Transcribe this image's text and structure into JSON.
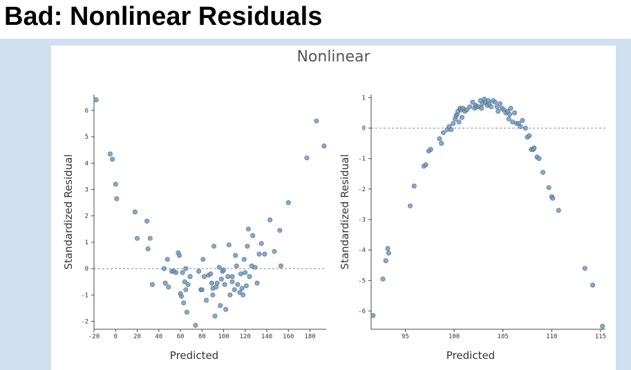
{
  "slide": {
    "title": "Bad: Nonlinear Residuals"
  },
  "colors": {
    "band": "#cfe0f1",
    "point": "#6e93b8",
    "point_stroke": "#46698d",
    "reference_line": "#888888"
  },
  "chart_data": [
    {
      "type": "scatter",
      "title": "Nonlinear",
      "xlabel": "Predicted",
      "ylabel": "Standardized Residual",
      "xlim": [
        -20,
        195
      ],
      "ylim": [
        -2.3,
        6.6
      ],
      "xticks": [
        -20,
        0,
        20,
        40,
        60,
        80,
        100,
        120,
        140,
        160,
        180
      ],
      "yticks": [
        -2,
        -1,
        0,
        1,
        2,
        3,
        4,
        5,
        6
      ],
      "reference_line": 0,
      "grid": false,
      "points": [
        [
          -18,
          6.4
        ],
        [
          -5,
          4.35
        ],
        [
          -3,
          4.15
        ],
        [
          0,
          3.2
        ],
        [
          1,
          2.65
        ],
        [
          18,
          2.15
        ],
        [
          20,
          1.15
        ],
        [
          29,
          1.8
        ],
        [
          30,
          0.75
        ],
        [
          32,
          1.15
        ],
        [
          34,
          -0.6
        ],
        [
          45,
          0.0
        ],
        [
          46,
          -0.55
        ],
        [
          48,
          0.35
        ],
        [
          49,
          -0.7
        ],
        [
          52,
          -0.1
        ],
        [
          54,
          -0.1
        ],
        [
          56,
          -0.15
        ],
        [
          58,
          0.6
        ],
        [
          59,
          0.5
        ],
        [
          60,
          -0.95
        ],
        [
          61,
          -1.05
        ],
        [
          62,
          -0.15
        ],
        [
          63,
          -1.3
        ],
        [
          64,
          -0.5
        ],
        [
          65,
          0.0
        ],
        [
          65,
          -0.8
        ],
        [
          66,
          -1.65
        ],
        [
          67,
          -0.6
        ],
        [
          69,
          -0.3
        ],
        [
          74,
          -2.15
        ],
        [
          77,
          -0.1
        ],
        [
          79,
          -0.8
        ],
        [
          80,
          -0.8
        ],
        [
          81,
          0.35
        ],
        [
          82,
          -0.3
        ],
        [
          84,
          -1.2
        ],
        [
          86,
          -0.25
        ],
        [
          88,
          -0.2
        ],
        [
          89,
          -0.55
        ],
        [
          90,
          -0.75
        ],
        [
          90,
          -1.0
        ],
        [
          91,
          0.85
        ],
        [
          92,
          -1.8
        ],
        [
          93,
          -0.7
        ],
        [
          94,
          -0.55
        ],
        [
          96,
          0.05
        ],
        [
          97,
          -1.4
        ],
        [
          98,
          -0.4
        ],
        [
          99,
          -0.1
        ],
        [
          100,
          -0.05
        ],
        [
          101,
          -0.6
        ],
        [
          102,
          -1.55
        ],
        [
          104,
          -0.3
        ],
        [
          105,
          0.9
        ],
        [
          106,
          -1.0
        ],
        [
          108,
          -0.5
        ],
        [
          108,
          -0.3
        ],
        [
          110,
          -0.8
        ],
        [
          111,
          0.5
        ],
        [
          112,
          0.1
        ],
        [
          113,
          -0.6
        ],
        [
          115,
          -0.9
        ],
        [
          116,
          -0.2
        ],
        [
          117,
          -0.75
        ],
        [
          118,
          -1.0
        ],
        [
          119,
          0.35
        ],
        [
          120,
          -0.15
        ],
        [
          121,
          -0.65
        ],
        [
          122,
          0.85
        ],
        [
          123,
          1.5
        ],
        [
          124,
          -0.3
        ],
        [
          126,
          0.1
        ],
        [
          127,
          1.25
        ],
        [
          129,
          0.05
        ],
        [
          131,
          -0.55
        ],
        [
          133,
          0.55
        ],
        [
          135,
          0.95
        ],
        [
          138,
          0.55
        ],
        [
          143,
          1.85
        ],
        [
          147,
          0.65
        ],
        [
          152,
          1.45
        ],
        [
          153,
          0.1
        ],
        [
          160,
          2.5
        ],
        [
          177,
          4.2
        ],
        [
          186,
          5.6
        ],
        [
          193,
          4.65
        ]
      ]
    },
    {
      "type": "scatter",
      "title": "",
      "xlabel": "Predicted",
      "ylabel": "Standardized Residual",
      "xlim": [
        91.5,
        115.5
      ],
      "ylim": [
        -6.6,
        1.1
      ],
      "xticks": [
        95,
        100,
        105,
        110,
        115
      ],
      "yticks": [
        -6,
        -5,
        -4,
        -3,
        -2,
        -1,
        0,
        1
      ],
      "reference_line": 0,
      "grid": false,
      "points": [
        [
          91.7,
          -6.15
        ],
        [
          92.7,
          -4.95
        ],
        [
          93.0,
          -4.35
        ],
        [
          93.2,
          -3.95
        ],
        [
          93.3,
          -4.1
        ],
        [
          95.5,
          -2.55
        ],
        [
          95.9,
          -1.9
        ],
        [
          96.9,
          -1.25
        ],
        [
          97.1,
          -1.2
        ],
        [
          97.4,
          -0.75
        ],
        [
          97.6,
          -0.7
        ],
        [
          98.5,
          -0.35
        ],
        [
          98.7,
          -0.5
        ],
        [
          98.9,
          -0.15
        ],
        [
          99.3,
          -0.05
        ],
        [
          99.5,
          0.05
        ],
        [
          99.7,
          -0.05
        ],
        [
          99.9,
          0.15
        ],
        [
          100.1,
          0.3
        ],
        [
          100.2,
          0.4
        ],
        [
          100.3,
          0.45
        ],
        [
          100.4,
          0.55
        ],
        [
          100.5,
          0.2
        ],
        [
          100.6,
          0.65
        ],
        [
          100.7,
          0.6
        ],
        [
          100.8,
          0.35
        ],
        [
          100.9,
          0.65
        ],
        [
          101.1,
          0.55
        ],
        [
          101.3,
          0.6
        ],
        [
          101.6,
          0.7
        ],
        [
          101.9,
          0.85
        ],
        [
          102.1,
          0.65
        ],
        [
          102.2,
          0.75
        ],
        [
          102.3,
          0.7
        ],
        [
          102.5,
          0.7
        ],
        [
          102.7,
          0.9
        ],
        [
          102.8,
          0.65
        ],
        [
          102.9,
          0.8
        ],
        [
          103.1,
          0.95
        ],
        [
          103.2,
          0.85
        ],
        [
          103.4,
          0.75
        ],
        [
          103.5,
          0.9
        ],
        [
          103.6,
          0.8
        ],
        [
          103.8,
          0.7
        ],
        [
          104.0,
          0.9
        ],
        [
          104.2,
          0.85
        ],
        [
          104.4,
          0.7
        ],
        [
          104.5,
          0.55
        ],
        [
          104.7,
          0.8
        ],
        [
          104.9,
          0.65
        ],
        [
          105.1,
          0.6
        ],
        [
          105.3,
          0.5
        ],
        [
          105.5,
          0.55
        ],
        [
          105.6,
          0.3
        ],
        [
          105.7,
          0.45
        ],
        [
          105.8,
          0.65
        ],
        [
          106.0,
          0.2
        ],
        [
          106.2,
          0.5
        ],
        [
          106.4,
          0.15
        ],
        [
          106.6,
          0.15
        ],
        [
          106.8,
          0.05
        ],
        [
          107.0,
          0.25
        ],
        [
          107.3,
          0.0
        ],
        [
          107.5,
          -0.3
        ],
        [
          107.7,
          -0.25
        ],
        [
          107.9,
          -0.7
        ],
        [
          108.1,
          -0.7
        ],
        [
          108.2,
          -0.65
        ],
        [
          108.5,
          -0.95
        ],
        [
          108.7,
          -1.0
        ],
        [
          109.1,
          -1.45
        ],
        [
          109.7,
          -1.95
        ],
        [
          110.0,
          -2.25
        ],
        [
          110.1,
          -2.3
        ],
        [
          110.7,
          -2.7
        ],
        [
          113.4,
          -4.6
        ],
        [
          114.2,
          -5.15
        ],
        [
          115.2,
          -6.5
        ]
      ]
    }
  ]
}
